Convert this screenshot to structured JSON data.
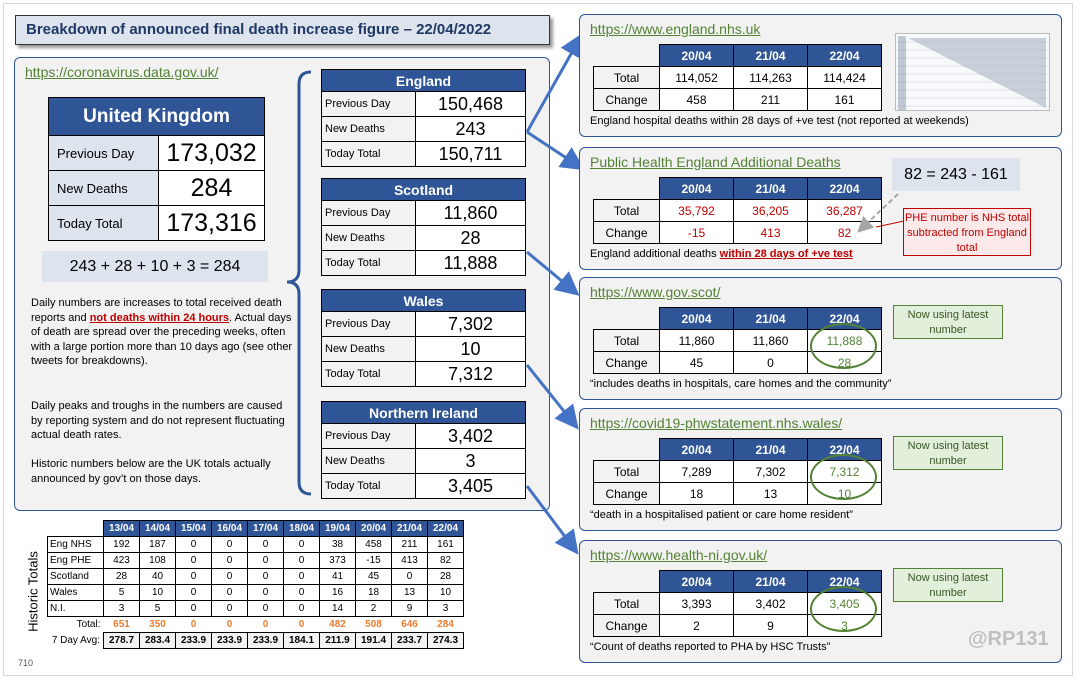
{
  "title": "Breakdown of announced final death increase figure – 22/04/2022",
  "left_link": "https://coronavirus.data.gov.uk/",
  "uk": {
    "title": "United Kingdom",
    "prev_label": "Previous Day",
    "prev": "173,032",
    "new_label": "New Deaths",
    "new": "284",
    "total_label": "Today Total",
    "total": "173,316"
  },
  "sum": "243 + 28 + 10 + 3 = 284",
  "notes": {
    "p1a": "Daily numbers are increases to total received death reports and ",
    "p1red": "not deaths within 24 hours",
    "p1b": ". Actual days of death are spread over the preceding weeks, often with a large portion more than 10 days ago (see other tweets  for breakdowns).",
    "p2": "Daily peaks and troughs in the numbers are caused by reporting system and do not represent fluctuating actual death rates.",
    "p3": "Historic numbers below are the UK totals actually announced by gov’t on those days."
  },
  "regions": [
    {
      "name": "England",
      "prev": "150,468",
      "new": "243",
      "total": "150,711"
    },
    {
      "name": "Scotland",
      "prev": "11,860",
      "new": "28",
      "total": "11,888"
    },
    {
      "name": "Wales",
      "prev": "7,302",
      "new": "10",
      "total": "7,312"
    },
    {
      "name": "Northern Ireland",
      "prev": "3,402",
      "new": "3",
      "total": "3,405"
    }
  ],
  "region_labels": {
    "prev": "Previous Day",
    "new": "New Deaths",
    "total": "Today Total"
  },
  "src_labels": {
    "total": "Total",
    "change": "Change",
    "dates": [
      "20/04",
      "21/04",
      "22/04"
    ]
  },
  "sources": [
    {
      "link": "https://www.england.nhs.uk",
      "totals": [
        "114,052",
        "114,263",
        "114,424"
      ],
      "changes": [
        "458",
        "211",
        "161"
      ],
      "caption": "England hospital deaths within 28 days of +ve test (not reported at weekends)"
    },
    {
      "link": "Public Health England Additional Deaths",
      "totals": [
        "35,792",
        "36,205",
        "36,287"
      ],
      "changes": [
        "-15",
        "413",
        "82"
      ],
      "caption": "England additional deaths ",
      "caption_red": "within 28 days of +ve test"
    },
    {
      "link": "https://www.gov.scot/",
      "totals": [
        "11,860",
        "11,860",
        "11,888"
      ],
      "changes": [
        "45",
        "0",
        "28"
      ],
      "caption": "“includes deaths in hospitals, care homes and the community”"
    },
    {
      "link": "https://covid19-phwstatement.nhs.wales/",
      "totals": [
        "7,289",
        "7,302",
        "7,312"
      ],
      "changes": [
        "18",
        "13",
        "10"
      ],
      "caption": "“death  in a hospitalised patient or care home resident”"
    },
    {
      "link": "https://www.health-ni.gov.uk/",
      "totals": [
        "3,393",
        "3,402",
        "3,405"
      ],
      "changes": [
        "2",
        "9",
        "3"
      ],
      "caption": "“Count of deaths reported to PHA by HSC Trusts”"
    }
  ],
  "phe_eq": "82 = 243 - 161",
  "phe_note": "PHE number  is NHS total subtracted from England total",
  "now_using": "Now using latest number",
  "watermark": "@RP131",
  "page_num": "710",
  "history": {
    "side_label": "Historic Totals",
    "dates": [
      "13/04",
      "14/04",
      "15/04",
      "16/04",
      "17/04",
      "18/04",
      "19/04",
      "20/04",
      "21/04",
      "22/04"
    ],
    "rows": [
      {
        "label": "Eng NHS",
        "values": [
          "192",
          "187",
          "0",
          "0",
          "0",
          "0",
          "38",
          "458",
          "211",
          "161"
        ]
      },
      {
        "label": "Eng PHE",
        "values": [
          "423",
          "108",
          "0",
          "0",
          "0",
          "0",
          "373",
          "-15",
          "413",
          "82"
        ]
      },
      {
        "label": "Scotland",
        "values": [
          "28",
          "40",
          "0",
          "0",
          "0",
          "0",
          "41",
          "45",
          "0",
          "28"
        ]
      },
      {
        "label": "Wales",
        "values": [
          "5",
          "10",
          "0",
          "0",
          "0",
          "0",
          "16",
          "18",
          "13",
          "10"
        ]
      },
      {
        "label": "N.I.",
        "values": [
          "3",
          "5",
          "0",
          "0",
          "0",
          "0",
          "14",
          "2",
          "9",
          "3"
        ]
      }
    ],
    "total_label": "Total:",
    "totals": [
      "651",
      "350",
      "0",
      "0",
      "0",
      "0",
      "482",
      "508",
      "646",
      "284"
    ],
    "avg_label": "7 Day Avg:",
    "avgs": [
      "278.7",
      "283.4",
      "233.9",
      "233.9",
      "233.9",
      "184.1",
      "211.9",
      "191.4",
      "233.7",
      "274.3"
    ]
  }
}
